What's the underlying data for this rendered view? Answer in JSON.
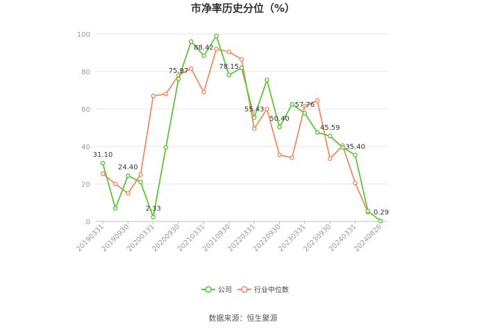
{
  "chart_data": {
    "type": "line",
    "title": "市净率历史分位（%）",
    "xlabel": "",
    "ylabel": "",
    "ylim": [
      0,
      100
    ],
    "yticks": [
      0,
      20,
      40,
      60,
      80,
      100
    ],
    "grid": "horizontal",
    "legend_placement": "bottom-center",
    "x": [
      "20190331",
      "20190630",
      "20190930",
      "20191231",
      "20200331",
      "20200630",
      "20200930",
      "20201231",
      "20210331",
      "20210630",
      "20210930",
      "20211231",
      "20220331",
      "20220630",
      "20220930",
      "20221231",
      "20230331",
      "20230630",
      "20230930",
      "20231231",
      "20240331",
      "20240630",
      "20240826"
    ],
    "x_tick_labels": [
      "20190331",
      "20190930",
      "20200331",
      "20200930",
      "20210331",
      "20210930",
      "20220331",
      "20220930",
      "20230331",
      "20230930",
      "20240331",
      "20240826"
    ],
    "series": [
      {
        "name": "公司",
        "color": "#5cc535",
        "values": [
          31.1,
          7.0,
          24.4,
          21.0,
          2.33,
          39.5,
          75.97,
          96.0,
          88.42,
          99.0,
          78.15,
          82.0,
          55.43,
          75.5,
          50.4,
          62.5,
          57.76,
          47.5,
          45.59,
          39.5,
          35.4,
          5.5,
          0.29
        ]
      },
      {
        "name": "行业中位数",
        "color": "#f5885e",
        "values": [
          25.5,
          20.0,
          15.0,
          25.0,
          67.0,
          68.0,
          78.0,
          81.5,
          69.0,
          92.0,
          90.5,
          86.5,
          49.5,
          60.0,
          35.5,
          34.0,
          61.5,
          64.5,
          33.5,
          40.5,
          20.5,
          5.0,
          null
        ]
      }
    ],
    "data_labels": [
      {
        "index": 0,
        "text": "31.10"
      },
      {
        "index": 2,
        "text": "24.40"
      },
      {
        "index": 4,
        "text": "2.33"
      },
      {
        "index": 6,
        "text": "75.97"
      },
      {
        "index": 8,
        "text": "88.42"
      },
      {
        "index": 10,
        "text": "78.15"
      },
      {
        "index": 12,
        "text": "55.43"
      },
      {
        "index": 14,
        "text": "50.40"
      },
      {
        "index": 16,
        "text": "57.76"
      },
      {
        "index": 18,
        "text": "45.59"
      },
      {
        "index": 20,
        "text": "35.40"
      },
      {
        "index": 22,
        "text": "0.29"
      }
    ],
    "source": "数据来源：恒生聚源"
  }
}
